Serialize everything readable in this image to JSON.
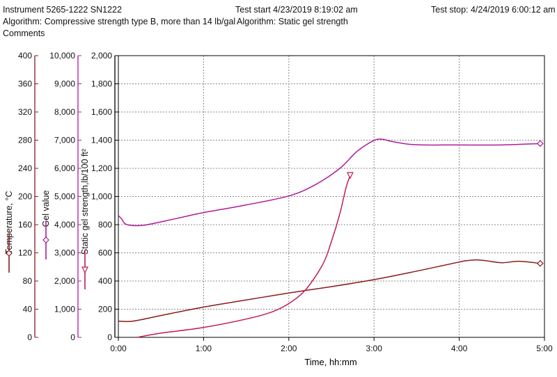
{
  "header": {
    "instrument": "Instrument 5265-1222 SN1222",
    "algorithm_left": "Algorithm: Compressive strength type B, more than 14 lb/gal",
    "comments": "Comments",
    "test_start": "Test start 4/23/2019 8:19:02 am",
    "algorithm_right": "Algorithm: Static gel strength",
    "test_stop": "Test stop: 4/24/2019 6:00:12 am"
  },
  "colors": {
    "temperature": "#8b1a1a",
    "gel": "#b01a9a",
    "sgs": "#c01a5a",
    "grid": "#888888",
    "axis": "#000000"
  },
  "chart_data": {
    "type": "line",
    "xlabel": "Time, hh:mm",
    "x_ticks": [
      "0:00",
      "1:00",
      "2:00",
      "3:00",
      "4:00",
      "5:00"
    ],
    "xlim": [
      0,
      5
    ],
    "grid": true,
    "axes": [
      {
        "id": "temperature",
        "label": "Temperature, °C",
        "ticks": [
          "0",
          "40",
          "80",
          "120",
          "160",
          "200",
          "240",
          "280",
          "320",
          "360",
          "400"
        ],
        "ylim": [
          0,
          400
        ]
      },
      {
        "id": "gel",
        "label": "Gel value",
        "ticks": [
          "0",
          "1,000",
          "2,000",
          "3,000",
          "4,000",
          "5,000",
          "6,000",
          "7,000",
          "8,000",
          "9,000",
          "10,000"
        ],
        "ylim": [
          0,
          10000
        ]
      },
      {
        "id": "sgs",
        "label": "Static gel strength,lb/100 ft²",
        "ticks": [
          "0",
          "200",
          "400",
          "600",
          "800",
          "1,000",
          "1,200",
          "1,400",
          "1,600",
          "1,800",
          "2,000"
        ],
        "ylim": [
          0,
          2000
        ]
      }
    ],
    "series": [
      {
        "axis": "temperature",
        "x": [
          0,
          0.17,
          0.5,
          1.0,
          1.5,
          2.0,
          2.5,
          3.0,
          3.5,
          4.0,
          4.1,
          4.2,
          4.3,
          4.5,
          4.7,
          4.95
        ],
        "y": [
          23,
          23,
          31,
          43,
          53,
          63,
          72,
          82,
          94,
          107,
          109,
          110,
          109,
          106,
          108,
          105
        ]
      },
      {
        "axis": "gel",
        "x": [
          0,
          0.04,
          0.08,
          0.17,
          0.3,
          0.5,
          0.8,
          1.0,
          1.5,
          2.0,
          2.3,
          2.6,
          2.8,
          3.0,
          3.1,
          3.2,
          3.4,
          3.6,
          3.8,
          4.0,
          4.5,
          4.95
        ],
        "y": [
          4320,
          4200,
          4030,
          3970,
          3980,
          4100,
          4300,
          4430,
          4700,
          5020,
          5400,
          6000,
          6600,
          6990,
          7030,
          6960,
          6860,
          6830,
          6830,
          6830,
          6830,
          6880
        ]
      },
      {
        "axis": "sgs",
        "x": [
          0.22,
          0.5,
          1.0,
          1.5,
          1.8,
          2.0,
          2.2,
          2.4,
          2.5,
          2.6,
          2.67,
          2.72
        ],
        "y": [
          0,
          30,
          70,
          130,
          180,
          240,
          340,
          520,
          680,
          880,
          1060,
          1150
        ]
      }
    ],
    "markers": [
      {
        "series": 1,
        "x": 4.95,
        "y": 6880,
        "shape": "diamond"
      },
      {
        "series": 0,
        "x": 4.95,
        "y": 105,
        "shape": "diamond"
      },
      {
        "series": 2,
        "x": 2.72,
        "y": 1150,
        "shape": "triangle-down"
      }
    ]
  }
}
